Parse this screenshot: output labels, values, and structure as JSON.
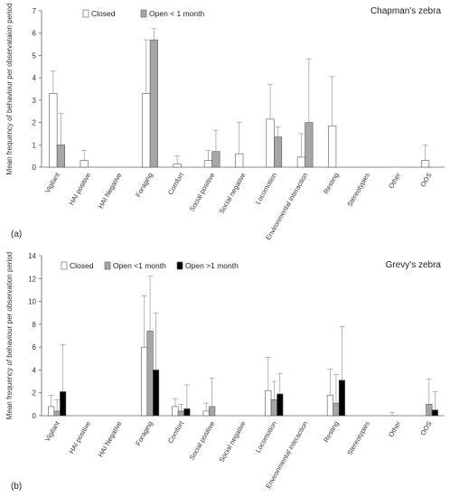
{
  "chart_data": [
    {
      "type": "bar",
      "panel_label": "(a)",
      "title": "Chapman's zebra",
      "ylabel": "Mean frequency of behaviour per observataion period",
      "ylim": [
        0,
        7
      ],
      "yticks": [
        0,
        1,
        2,
        3,
        4,
        5,
        6,
        7
      ],
      "categories": [
        "Vigilant",
        "HAI positive",
        "HAI Negative",
        "Foraging",
        "Comfort",
        "Social positive",
        "Social negative",
        "Locomotion",
        "Environmental interaction",
        "Resting",
        "Stereotypies",
        "Other",
        "OOS"
      ],
      "series": [
        {
          "name": "Closed",
          "color": "#ffffff",
          "values": [
            3.3,
            0.3,
            0,
            3.3,
            0.15,
            0.3,
            0.6,
            2.15,
            0.45,
            1.85,
            0,
            0,
            0.3
          ],
          "err": [
            1.0,
            0.45,
            0,
            2.4,
            0.35,
            0.45,
            1.4,
            1.55,
            1.05,
            2.2,
            0,
            0,
            0.7
          ]
        },
        {
          "name": "Open < 1 month",
          "color": "#a6a6a6",
          "values": [
            1.0,
            0,
            0,
            5.7,
            0,
            0.7,
            0,
            1.35,
            2.0,
            0,
            0,
            0,
            0
          ],
          "err": [
            1.4,
            0,
            0,
            0.5,
            0,
            0.95,
            0,
            0.45,
            2.85,
            0,
            0,
            0,
            0
          ]
        }
      ]
    },
    {
      "type": "bar",
      "panel_label": "(b)",
      "title": "Grevy's zebra",
      "ylabel": "Mean frequency of behaviour per observation period",
      "ylim": [
        0,
        14
      ],
      "yticks": [
        0,
        2,
        4,
        6,
        8,
        10,
        12,
        14
      ],
      "categories": [
        "Vigilant",
        "HAI positive",
        "HAI Negative",
        "Foraging",
        "Comfort",
        "Social positive",
        "Social negative",
        "Locomotion",
        "Environmental interaction",
        "Resting",
        "Stereotypies",
        "Other",
        "OOS"
      ],
      "series": [
        {
          "name": "Closed",
          "color": "#ffffff",
          "values": [
            0.8,
            0,
            0,
            6.0,
            0.8,
            0.4,
            0,
            2.2,
            0,
            1.8,
            0,
            0,
            0
          ],
          "err": [
            1.0,
            0,
            0,
            4.5,
            0.7,
            0.7,
            0,
            2.9,
            0,
            2.3,
            0,
            0.3,
            0
          ]
        },
        {
          "name": "Open <1 month",
          "color": "#a6a6a6",
          "values": [
            0.4,
            0,
            0,
            7.4,
            0.4,
            0.8,
            0,
            1.4,
            0,
            1.1,
            0,
            0,
            1.0
          ],
          "err": [
            1.0,
            0,
            0,
            4.8,
            0.6,
            2.5,
            0,
            1.6,
            0,
            2.5,
            0,
            0,
            2.2
          ]
        },
        {
          "name": "Open >1 month",
          "color": "#000000",
          "values": [
            2.1,
            0,
            0,
            4.0,
            0.6,
            0,
            0,
            1.9,
            0,
            3.1,
            0,
            0,
            0.5
          ],
          "err": [
            4.1,
            0,
            0,
            5.0,
            2.1,
            0,
            0,
            1.8,
            0,
            4.7,
            0,
            0,
            1.6
          ]
        }
      ]
    }
  ]
}
